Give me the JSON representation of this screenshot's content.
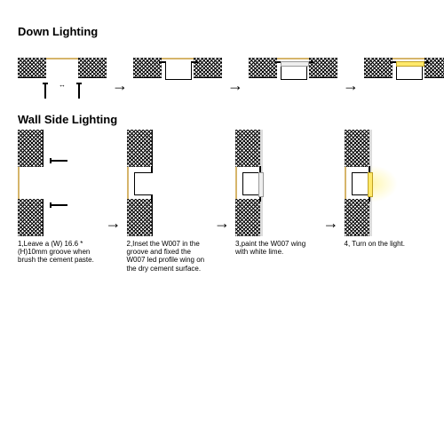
{
  "titles": {
    "down": "Down Lighting",
    "wall": "Wall Side Lighting"
  },
  "captions": {
    "step1": "1,Leave a (W) 16.6 * (H)10mm groove when brush the cement paste.",
    "step2": "2,Inset the W007 in the groove and fixed the W007 led profile wing on the dry cement surface.",
    "step3": "3,paint the W007 wing with white lime.",
    "step4": "4, Turn on the light."
  },
  "arrow_glyph": "→",
  "style": {
    "type": "installation-diagram",
    "background_color": "#ffffff",
    "line_color": "#000000",
    "surface_tint": "#d6b56b",
    "light_color": "#ffe96b",
    "light_border": "#c0a224",
    "diffuser_color": "#eeeeee",
    "caption_fontsize_pt": 8,
    "title_fontsize_pt": 13,
    "font_family": "Arial",
    "layout": {
      "rows": 2,
      "steps_per_row": 4
    }
  },
  "down_steps": [
    {
      "groove": true,
      "dim_arrows": true,
      "screws": true,
      "profile": false,
      "diffuser": false,
      "lit": false
    },
    {
      "groove": true,
      "dim_arrows": false,
      "screws": false,
      "profile": true,
      "diffuser": false,
      "lit": false
    },
    {
      "groove": true,
      "dim_arrows": false,
      "screws": false,
      "profile": true,
      "diffuser": true,
      "lit": false
    },
    {
      "groove": true,
      "dim_arrows": false,
      "screws": false,
      "profile": true,
      "diffuser": false,
      "lit": true
    }
  ],
  "wall_steps": [
    {
      "screws": true,
      "profile": false,
      "diffuser": false,
      "finish": false,
      "lit": false
    },
    {
      "screws": false,
      "profile": true,
      "diffuser": false,
      "finish": false,
      "lit": false
    },
    {
      "screws": false,
      "profile": true,
      "diffuser": true,
      "finish": true,
      "lit": false
    },
    {
      "screws": false,
      "profile": true,
      "diffuser": false,
      "finish": true,
      "lit": true
    }
  ]
}
